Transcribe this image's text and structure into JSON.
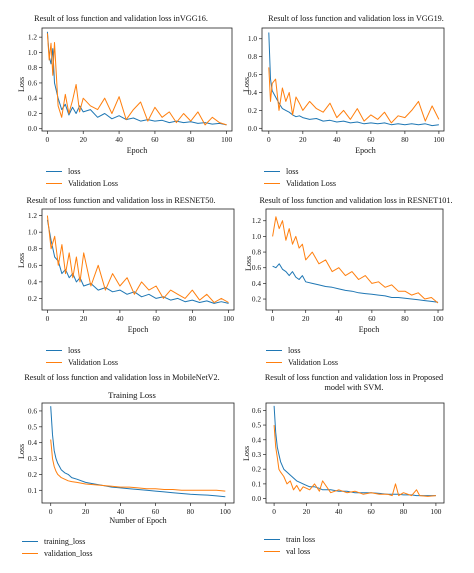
{
  "colors": {
    "series1": "#1f77b4",
    "series2": "#ff7f0e"
  },
  "chart_data": [
    {
      "type": "line",
      "title": "Result of loss function and validation loss inVGG16.",
      "xlabel": "Epoch",
      "ylabel": "Loss",
      "xlim": [
        -3,
        103
      ],
      "ylim": [
        -0.03,
        1.32
      ],
      "xticks": [
        0,
        20,
        40,
        60,
        80,
        100
      ],
      "yticks": [
        0.0,
        0.2,
        0.4,
        0.6,
        0.8,
        1.0,
        1.2
      ],
      "x": [
        0,
        1,
        2,
        3,
        4,
        6,
        8,
        10,
        12,
        14,
        16,
        18,
        20,
        24,
        28,
        32,
        36,
        40,
        44,
        48,
        52,
        56,
        60,
        64,
        68,
        72,
        76,
        80,
        84,
        88,
        92,
        96,
        100
      ],
      "series": [
        {
          "name": "loss",
          "values": [
            1.27,
            0.95,
            0.85,
            1.05,
            0.6,
            0.4,
            0.25,
            0.32,
            0.18,
            0.28,
            0.2,
            0.3,
            0.22,
            0.25,
            0.15,
            0.2,
            0.13,
            0.17,
            0.12,
            0.14,
            0.1,
            0.12,
            0.1,
            0.11,
            0.08,
            0.1,
            0.08,
            0.09,
            0.07,
            0.08,
            0.06,
            0.07,
            0.05
          ]
        },
        {
          "name": "Validation Loss",
          "values": [
            1.25,
            0.9,
            1.12,
            0.7,
            1.13,
            0.3,
            0.15,
            0.45,
            0.2,
            0.37,
            0.58,
            0.22,
            0.4,
            0.3,
            0.25,
            0.4,
            0.2,
            0.42,
            0.12,
            0.25,
            0.35,
            0.1,
            0.28,
            0.15,
            0.22,
            0.08,
            0.2,
            0.1,
            0.22,
            0.05,
            0.15,
            0.08,
            0.05
          ]
        }
      ]
    },
    {
      "type": "line",
      "title": "Result of loss function and validation loss in VGG19.",
      "xlabel": "Epoch",
      "ylabel": "Loss",
      "xlim": [
        -4,
        103
      ],
      "ylim": [
        -0.03,
        1.12
      ],
      "xticks": [
        0,
        20,
        40,
        60,
        80,
        100
      ],
      "yticks": [
        0.0,
        0.2,
        0.4,
        0.6,
        0.8,
        1.0
      ],
      "x": [
        0,
        1,
        2,
        4,
        6,
        8,
        10,
        12,
        14,
        16,
        18,
        20,
        24,
        28,
        32,
        36,
        40,
        44,
        48,
        52,
        56,
        60,
        64,
        68,
        72,
        76,
        80,
        84,
        88,
        92,
        96,
        100
      ],
      "series": [
        {
          "name": "loss",
          "values": [
            1.07,
            0.55,
            0.42,
            0.35,
            0.28,
            0.22,
            0.2,
            0.18,
            0.15,
            0.13,
            0.14,
            0.12,
            0.1,
            0.11,
            0.08,
            0.09,
            0.07,
            0.08,
            0.06,
            0.07,
            0.05,
            0.06,
            0.05,
            0.06,
            0.04,
            0.05,
            0.04,
            0.05,
            0.04,
            0.05,
            0.03,
            0.04
          ]
        },
        {
          "name": "Validation Loss",
          "values": [
            0.68,
            0.3,
            0.5,
            0.55,
            0.2,
            0.45,
            0.3,
            0.4,
            0.15,
            0.35,
            0.28,
            0.2,
            0.3,
            0.22,
            0.18,
            0.28,
            0.12,
            0.2,
            0.1,
            0.22,
            0.08,
            0.15,
            0.1,
            0.18,
            0.06,
            0.14,
            0.12,
            0.2,
            0.3,
            0.08,
            0.25,
            0.1
          ]
        }
      ]
    },
    {
      "type": "line",
      "title": "Result of loss function and validation loss in RESNET50.",
      "xlabel": "Epoch",
      "ylabel": "Loss",
      "xlim": [
        -3,
        103
      ],
      "ylim": [
        0.06,
        1.28
      ],
      "xticks": [
        0,
        20,
        40,
        60,
        80,
        100
      ],
      "yticks": [
        0.2,
        0.4,
        0.6,
        0.8,
        1.0,
        1.2
      ],
      "x": [
        0,
        2,
        4,
        6,
        8,
        10,
        12,
        14,
        16,
        18,
        20,
        24,
        28,
        32,
        36,
        40,
        44,
        48,
        52,
        56,
        60,
        64,
        68,
        72,
        76,
        80,
        84,
        88,
        92,
        96,
        100
      ],
      "series": [
        {
          "name": "loss",
          "values": [
            1.15,
            0.9,
            0.7,
            0.65,
            0.5,
            0.55,
            0.45,
            0.5,
            0.4,
            0.45,
            0.35,
            0.38,
            0.3,
            0.33,
            0.28,
            0.3,
            0.25,
            0.28,
            0.22,
            0.25,
            0.2,
            0.22,
            0.18,
            0.2,
            0.16,
            0.18,
            0.15,
            0.17,
            0.14,
            0.16,
            0.14
          ]
        },
        {
          "name": "Validation Loss",
          "values": [
            1.2,
            0.8,
            0.95,
            0.6,
            0.85,
            0.5,
            0.75,
            0.45,
            0.7,
            0.4,
            0.75,
            0.35,
            0.6,
            0.3,
            0.5,
            0.35,
            0.45,
            0.25,
            0.4,
            0.3,
            0.35,
            0.2,
            0.3,
            0.25,
            0.2,
            0.3,
            0.18,
            0.25,
            0.15,
            0.2,
            0.15
          ]
        }
      ]
    },
    {
      "type": "line",
      "title": "Result of loss function and validation loss in RESNET101.",
      "xlabel": "Epoch",
      "ylabel": "Loss",
      "xlim": [
        -4,
        103
      ],
      "ylim": [
        0.06,
        1.35
      ],
      "xticks": [
        0,
        20,
        40,
        60,
        80,
        100
      ],
      "yticks": [
        0.2,
        0.4,
        0.6,
        0.8,
        1.0,
        1.2
      ],
      "x": [
        0,
        2,
        4,
        6,
        8,
        10,
        12,
        14,
        16,
        18,
        20,
        24,
        28,
        32,
        36,
        40,
        44,
        48,
        52,
        56,
        60,
        64,
        68,
        72,
        76,
        80,
        84,
        88,
        92,
        96,
        100
      ],
      "series": [
        {
          "name": "loss",
          "values": [
            0.62,
            0.6,
            0.65,
            0.58,
            0.55,
            0.5,
            0.55,
            0.48,
            0.45,
            0.5,
            0.42,
            0.4,
            0.38,
            0.36,
            0.35,
            0.33,
            0.31,
            0.3,
            0.28,
            0.27,
            0.26,
            0.25,
            0.24,
            0.22,
            0.22,
            0.21,
            0.2,
            0.19,
            0.18,
            0.17,
            0.16
          ]
        },
        {
          "name": "Validation Loss",
          "values": [
            1.0,
            1.25,
            1.1,
            1.2,
            0.95,
            1.1,
            0.9,
            1.0,
            0.85,
            0.9,
            0.7,
            0.8,
            0.65,
            0.7,
            0.55,
            0.6,
            0.5,
            0.55,
            0.45,
            0.5,
            0.4,
            0.42,
            0.35,
            0.38,
            0.3,
            0.3,
            0.25,
            0.28,
            0.2,
            0.22,
            0.15
          ]
        }
      ]
    },
    {
      "type": "line",
      "title": "Result of loss function and validation loss in MobileNetV2.",
      "subtitle": "Training Loss",
      "xlabel": "Number of Epoch",
      "ylabel": "Loss",
      "xlim": [
        -5,
        105
      ],
      "ylim": [
        0.02,
        0.65
      ],
      "xticks": [
        0,
        20,
        40,
        60,
        80,
        100
      ],
      "yticks": [
        0.1,
        0.2,
        0.3,
        0.4,
        0.5,
        0.6
      ],
      "x": [
        0,
        1,
        2,
        3,
        4,
        5,
        6,
        8,
        10,
        12,
        15,
        20,
        25,
        30,
        35,
        40,
        45,
        50,
        55,
        60,
        65,
        70,
        75,
        80,
        85,
        90,
        95,
        100
      ],
      "series": [
        {
          "name": "training_loss",
          "values": [
            0.63,
            0.45,
            0.35,
            0.3,
            0.27,
            0.25,
            0.23,
            0.21,
            0.2,
            0.18,
            0.17,
            0.15,
            0.14,
            0.13,
            0.12,
            0.115,
            0.11,
            0.105,
            0.1,
            0.095,
            0.09,
            0.085,
            0.08,
            0.075,
            0.072,
            0.07,
            0.065,
            0.06
          ]
        },
        {
          "name": "validation_loss",
          "values": [
            0.42,
            0.3,
            0.25,
            0.22,
            0.2,
            0.19,
            0.18,
            0.17,
            0.16,
            0.155,
            0.15,
            0.14,
            0.135,
            0.13,
            0.125,
            0.12,
            0.12,
            0.115,
            0.11,
            0.11,
            0.105,
            0.105,
            0.1,
            0.1,
            0.1,
            0.1,
            0.1,
            0.095
          ]
        }
      ]
    },
    {
      "type": "line",
      "title": "Result of loss function and validation loss in Proposed model with SVM.",
      "xlabel": "",
      "ylabel": "Loss",
      "xlim": [
        -5,
        105
      ],
      "ylim": [
        -0.03,
        0.65
      ],
      "xticks": [
        0,
        20,
        40,
        60,
        80,
        100
      ],
      "yticks": [
        0.0,
        0.1,
        0.2,
        0.3,
        0.4,
        0.5,
        0.6
      ],
      "x": [
        0,
        1,
        2,
        3,
        4,
        6,
        8,
        10,
        12,
        14,
        16,
        18,
        20,
        22,
        25,
        28,
        30,
        35,
        40,
        45,
        50,
        55,
        60,
        65,
        70,
        73,
        75,
        77,
        80,
        85,
        88,
        90,
        95,
        100
      ],
      "series": [
        {
          "name": "train loss",
          "values": [
            0.63,
            0.45,
            0.35,
            0.3,
            0.25,
            0.2,
            0.18,
            0.16,
            0.14,
            0.12,
            0.11,
            0.1,
            0.09,
            0.08,
            0.08,
            0.07,
            0.06,
            0.06,
            0.05,
            0.05,
            0.04,
            0.04,
            0.04,
            0.035,
            0.03,
            0.03,
            0.03,
            0.03,
            0.025,
            0.025,
            0.02,
            0.02,
            0.02,
            0.02
          ]
        },
        {
          "name": "val loss",
          "values": [
            0.5,
            0.35,
            0.28,
            0.2,
            0.18,
            0.15,
            0.1,
            0.12,
            0.06,
            0.09,
            0.05,
            0.08,
            0.07,
            0.06,
            0.1,
            0.05,
            0.12,
            0.04,
            0.06,
            0.04,
            0.05,
            0.03,
            0.04,
            0.03,
            0.03,
            0.02,
            0.1,
            0.02,
            0.04,
            0.02,
            0.06,
            0.02,
            0.015,
            0.02
          ]
        }
      ]
    }
  ]
}
